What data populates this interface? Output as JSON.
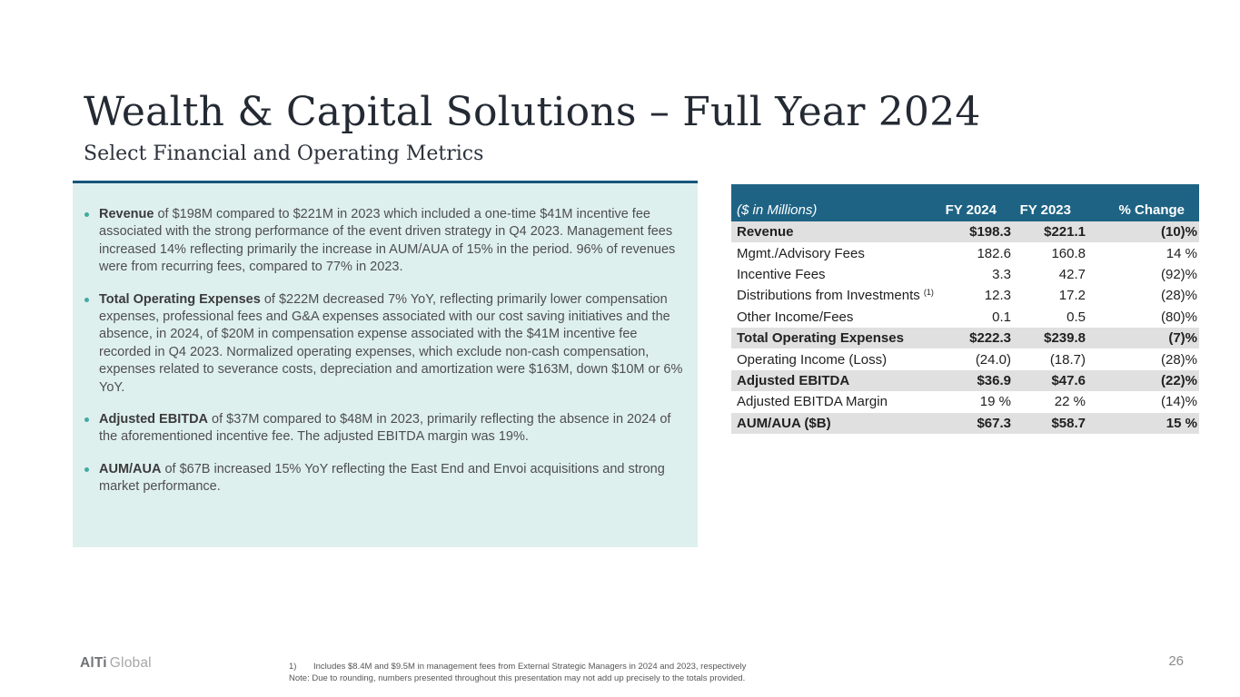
{
  "header": {
    "title": "Wealth & Capital Solutions – Full Year 2024",
    "subtitle": "Select Financial and Operating Metrics"
  },
  "highlights": {
    "bullets": [
      {
        "lead": "Revenue",
        "text": " of $198M compared to $221M in 2023 which included a one-time $41M incentive fee associated with the strong performance of the event driven strategy in Q4 2023. Management fees increased 14% reflecting primarily the increase in AUM/AUA of 15% in the period. 96% of revenues were from recurring fees, compared to 77% in 2023."
      },
      {
        "lead": "Total Operating Expenses",
        "text": " of $222M decreased 7% YoY, reflecting primarily lower compensation expenses, professional fees and G&A expenses associated with our cost saving initiatives and the absence, in 2024, of $20M in compensation expense associated with the $41M incentive fee recorded in Q4 2023. Normalized operating expenses, which exclude non-cash compensation, expenses related to severance costs, depreciation and amortization were $163M, down $10M or 6% YoY."
      },
      {
        "lead": "Adjusted EBITDA",
        "text": " of $37M compared to $48M in 2023, primarily reflecting the absence in 2024 of the aforementioned incentive fee. The adjusted EBITDA margin was 19%."
      },
      {
        "lead": "AUM/AUA",
        "text": " of $67B increased 15% YoY reflecting the East End and Envoi acquisitions and strong market performance."
      }
    ]
  },
  "table": {
    "columns": [
      "($ in Millions)",
      "FY 2024",
      "FY 2023",
      "% Change"
    ],
    "rows": [
      {
        "label": "Revenue",
        "sup": "",
        "fy2024": "$198.3",
        "fy2023": "$221.1",
        "change": "(10)%",
        "bold": true,
        "shaded": true
      },
      {
        "label": "Mgmt./Advisory Fees",
        "sup": "",
        "fy2024": "182.6",
        "fy2023": "160.8",
        "change": "14 %",
        "bold": false,
        "shaded": false
      },
      {
        "label": "Incentive Fees",
        "sup": "",
        "fy2024": "3.3",
        "fy2023": "42.7",
        "change": "(92)%",
        "bold": false,
        "shaded": false
      },
      {
        "label": "Distributions from Investments ",
        "sup": "(1)",
        "fy2024": "12.3",
        "fy2023": "17.2",
        "change": "(28)%",
        "bold": false,
        "shaded": false
      },
      {
        "label": "Other Income/Fees",
        "sup": "",
        "fy2024": "0.1",
        "fy2023": "0.5",
        "change": "(80)%",
        "bold": false,
        "shaded": false
      },
      {
        "label": "Total Operating Expenses",
        "sup": "",
        "fy2024": "$222.3",
        "fy2023": "$239.8",
        "change": "(7)%",
        "bold": true,
        "shaded": true
      },
      {
        "label": "Operating Income (Loss)",
        "sup": "",
        "fy2024": "(24.0)",
        "fy2023": "(18.7)",
        "change": "(28)%",
        "bold": false,
        "shaded": false
      },
      {
        "label": "Adjusted EBITDA",
        "sup": "",
        "fy2024": "$36.9",
        "fy2023": "$47.6",
        "change": "(22)%",
        "bold": true,
        "shaded": true
      },
      {
        "label": "Adjusted EBITDA Margin",
        "sup": "",
        "fy2024": "19 %",
        "fy2023": "22 %",
        "change": "(14)%",
        "bold": false,
        "shaded": false
      },
      {
        "label": "AUM/AUA ($B)",
        "sup": "",
        "fy2024": "$67.3",
        "fy2023": "$58.7",
        "change": "15 %",
        "bold": true,
        "shaded": true
      }
    ]
  },
  "footer": {
    "logo_primary": "AlTi",
    "logo_secondary": "Global",
    "footnote_number": "1)",
    "footnote_text": "Includes $8.4M and $9.5M in management fees from External Strategic Managers in 2024 and 2023, respectively",
    "note_text": "Note: Due to rounding, numbers presented throughout this presentation may not add up precisely to the totals provided.",
    "page_number": "26"
  },
  "colors": {
    "table_header_bg": "#1e6384",
    "shaded_row_bg": "#e0e0e0",
    "highlight_box_bg": "#def0ee",
    "accent_line": "#16567d",
    "bullet_dot": "#43a9a1"
  }
}
